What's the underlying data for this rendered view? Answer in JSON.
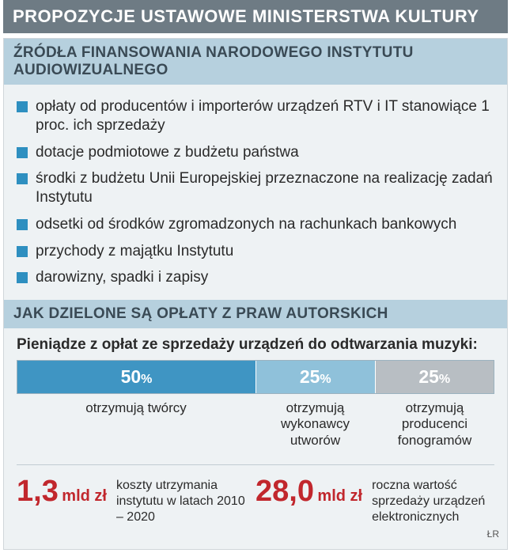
{
  "title": "PROPOZYCJE USTAWOWE MINISTERSTWA KULTURY",
  "section1": {
    "header": "ŹRÓDŁA FINANSOWANIA NARODOWEGO INSTYTUTU AUDIOWIZUALNEGO",
    "bullet_color": "#2e8fc0",
    "items": [
      "opłaty od producentów i importerów urządzeń RTV i IT stanowiące 1 proc. ich sprzedaży",
      "dotacje podmiotowe z budżetu państwa",
      "środki z budżetu Unii Europejskiej przeznaczone na realizację zadań Instytutu",
      "odsetki od środków zgromadzonych na rachunkach bankowych",
      "przychody z majątku Instytutu",
      "darowizny, spadki i zapisy"
    ]
  },
  "section2": {
    "header": "JAK DZIELONE SĄ OPŁATY Z PRAW AUTORSKICH",
    "subhead": "Pieniądze z opłat ze sprzedaży urządzeń do odtwarzania muzyki:",
    "bar": {
      "segments": [
        {
          "value": "50",
          "unit": "%",
          "width_pct": 50,
          "color": "#3f95c3",
          "label": "otrzymują twórcy"
        },
        {
          "value": "25",
          "unit": "%",
          "width_pct": 25,
          "color": "#8fc1da",
          "label": "otrzymują wykonawcy utworów"
        },
        {
          "value": "25",
          "unit": "%",
          "width_pct": 25,
          "color": "#b8bec3",
          "label": "otrzymują producenci fonogramów"
        }
      ]
    }
  },
  "stats": [
    {
      "value": "1,3",
      "unit": "mld zł",
      "text": "koszty utrzymania instytutu w latach 2010 – 2020"
    },
    {
      "value": "28,0",
      "unit": "mld zł",
      "text": "roczna wartość sprzedaży urządzeń elektronicznych"
    }
  ],
  "colors": {
    "title_bg": "#6e7b84",
    "panel_bg": "#eef2f4",
    "section_header_bg": "#b6d0de",
    "stat_value": "#c1272d"
  },
  "credit": "ŁR"
}
